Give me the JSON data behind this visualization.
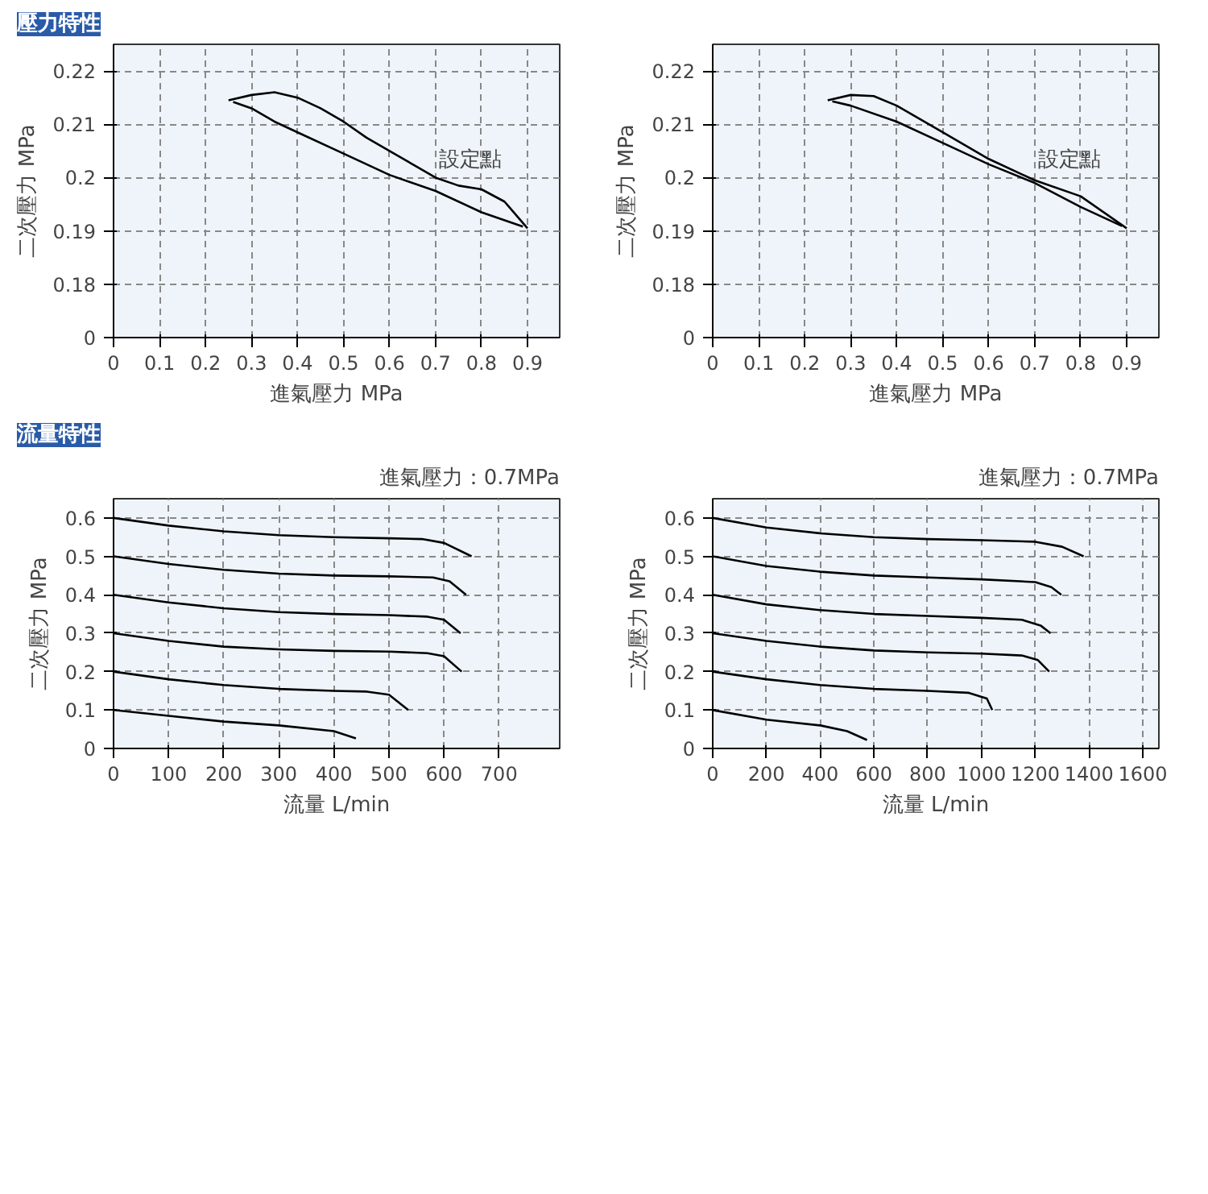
{
  "chart_data": [
    {
      "type": "line",
      "title": "壓力特性",
      "xlabel": "進氣壓力 MPa",
      "ylabel": "二次壓力 MPa",
      "xlim": [
        0,
        0.97
      ],
      "ylim": [
        0.17,
        0.225
      ],
      "xticks": [
        0,
        0.1,
        0.2,
        0.3,
        0.4,
        0.5,
        0.6,
        0.7,
        0.8,
        0.9
      ],
      "yticks": [
        {
          "value": 0.17,
          "label": "0"
        },
        0.18,
        0.19,
        0.2,
        0.21,
        0.22
      ],
      "grid": true,
      "annotations": [
        {
          "text": "設定點",
          "x": 0.7,
          "y": 0.2
        }
      ],
      "series": [
        {
          "color": "#000000",
          "x": [
            0.25,
            0.3,
            0.35,
            0.4,
            0.45,
            0.5,
            0.55,
            0.6,
            0.65,
            0.7,
            0.75,
            0.8,
            0.85,
            0.9
          ],
          "values": [
            0.2145,
            0.2155,
            0.216,
            0.215,
            0.213,
            0.2105,
            0.2075,
            0.205,
            0.2025,
            0.2,
            0.1985,
            0.1978,
            0.1955,
            0.1905
          ]
        },
        {
          "color": "#000000",
          "x": [
            0.26,
            0.3,
            0.35,
            0.4,
            0.5,
            0.6,
            0.7,
            0.8,
            0.89
          ],
          "values": [
            0.2142,
            0.213,
            0.2105,
            0.2085,
            0.2045,
            0.2005,
            0.1975,
            0.1935,
            0.1908
          ]
        }
      ]
    },
    {
      "type": "line",
      "xlabel": "進氣壓力 MPa",
      "ylabel": "二次壓力 MPa",
      "xlim": [
        0,
        0.97
      ],
      "ylim": [
        0.17,
        0.225
      ],
      "xticks": [
        0,
        0.1,
        0.2,
        0.3,
        0.4,
        0.5,
        0.6,
        0.7,
        0.8,
        0.9
      ],
      "yticks": [
        {
          "value": 0.17,
          "label": "0"
        },
        0.18,
        0.19,
        0.2,
        0.21,
        0.22
      ],
      "grid": true,
      "annotations": [
        {
          "text": "設定點",
          "x": 0.7,
          "y": 0.2
        }
      ],
      "series": [
        {
          "color": "#000000",
          "x": [
            0.25,
            0.3,
            0.35,
            0.4,
            0.5,
            0.6,
            0.7,
            0.8,
            0.9
          ],
          "values": [
            0.2145,
            0.2155,
            0.2153,
            0.2135,
            0.2085,
            0.2035,
            0.1995,
            0.1965,
            0.1905
          ]
        },
        {
          "color": "#000000",
          "x": [
            0.26,
            0.3,
            0.4,
            0.5,
            0.6,
            0.7,
            0.8,
            0.89
          ],
          "values": [
            0.2143,
            0.2135,
            0.2105,
            0.2065,
            0.2025,
            0.199,
            0.1945,
            0.1909
          ]
        }
      ]
    },
    {
      "type": "line",
      "title": "流量特性",
      "subtitle": "進氣壓力：0.7MPa",
      "xlabel": "流量 L/min",
      "ylabel": "二次壓力 MPa",
      "xlim": [
        0,
        810
      ],
      "ylim": [
        0,
        0.65
      ],
      "xticks": [
        0,
        100,
        200,
        300,
        400,
        500,
        600,
        700
      ],
      "yticks": [
        0,
        0.1,
        0.2,
        0.3,
        0.4,
        0.5,
        0.6
      ],
      "grid": true,
      "series": [
        {
          "color": "#000000",
          "x": [
            0,
            100,
            200,
            300,
            400,
            500,
            560,
            600,
            650
          ],
          "values": [
            0.6,
            0.58,
            0.565,
            0.555,
            0.55,
            0.547,
            0.545,
            0.535,
            0.5
          ]
        },
        {
          "color": "#000000",
          "x": [
            0,
            100,
            200,
            300,
            400,
            500,
            580,
            610,
            640
          ],
          "values": [
            0.5,
            0.48,
            0.465,
            0.455,
            0.45,
            0.448,
            0.445,
            0.435,
            0.4
          ]
        },
        {
          "color": "#000000",
          "x": [
            0,
            100,
            200,
            300,
            400,
            500,
            570,
            600,
            630
          ],
          "values": [
            0.4,
            0.38,
            0.365,
            0.355,
            0.35,
            0.347,
            0.343,
            0.335,
            0.3
          ]
        },
        {
          "color": "#000000",
          "x": [
            0,
            100,
            200,
            300,
            400,
            500,
            570,
            600,
            632
          ],
          "values": [
            0.3,
            0.28,
            0.265,
            0.258,
            0.254,
            0.252,
            0.248,
            0.24,
            0.2
          ]
        },
        {
          "color": "#000000",
          "x": [
            0,
            100,
            200,
            300,
            400,
            460,
            500,
            535
          ],
          "values": [
            0.2,
            0.18,
            0.165,
            0.155,
            0.15,
            0.148,
            0.14,
            0.1
          ]
        },
        {
          "color": "#000000",
          "x": [
            0,
            100,
            200,
            300,
            400,
            440
          ],
          "values": [
            0.1,
            0.085,
            0.07,
            0.06,
            0.045,
            0.026
          ]
        }
      ]
    },
    {
      "type": "line",
      "subtitle": "進氣壓力：0.7MPa",
      "xlabel": "流量 L/min",
      "ylabel": "二次壓力 MPa",
      "xlim": [
        0,
        1660
      ],
      "ylim": [
        0,
        0.65
      ],
      "xticks": [
        0,
        200,
        400,
        600,
        800,
        1000,
        1200,
        1400,
        1600
      ],
      "yticks": [
        0,
        0.1,
        0.2,
        0.3,
        0.4,
        0.5,
        0.6
      ],
      "grid": true,
      "series": [
        {
          "color": "#000000",
          "x": [
            0,
            200,
            400,
            600,
            800,
            1000,
            1200,
            1300,
            1380
          ],
          "values": [
            0.6,
            0.575,
            0.56,
            0.55,
            0.545,
            0.542,
            0.538,
            0.525,
            0.5
          ]
        },
        {
          "color": "#000000",
          "x": [
            0,
            200,
            400,
            600,
            800,
            1000,
            1200,
            1260,
            1297
          ],
          "values": [
            0.5,
            0.475,
            0.46,
            0.45,
            0.445,
            0.44,
            0.433,
            0.42,
            0.4
          ]
        },
        {
          "color": "#000000",
          "x": [
            0,
            200,
            400,
            600,
            800,
            1000,
            1150,
            1220,
            1257
          ],
          "values": [
            0.4,
            0.375,
            0.36,
            0.35,
            0.345,
            0.34,
            0.335,
            0.32,
            0.3
          ]
        },
        {
          "color": "#000000",
          "x": [
            0,
            200,
            400,
            600,
            800,
            1000,
            1150,
            1210,
            1252
          ],
          "values": [
            0.3,
            0.28,
            0.265,
            0.255,
            0.25,
            0.247,
            0.242,
            0.23,
            0.2
          ]
        },
        {
          "color": "#000000",
          "x": [
            0,
            200,
            400,
            600,
            800,
            950,
            1020,
            1040
          ],
          "values": [
            0.2,
            0.18,
            0.165,
            0.155,
            0.15,
            0.145,
            0.13,
            0.1
          ]
        },
        {
          "color": "#000000",
          "x": [
            0,
            200,
            400,
            500,
            574
          ],
          "values": [
            0.1,
            0.075,
            0.06,
            0.045,
            0.022
          ]
        }
      ]
    }
  ]
}
